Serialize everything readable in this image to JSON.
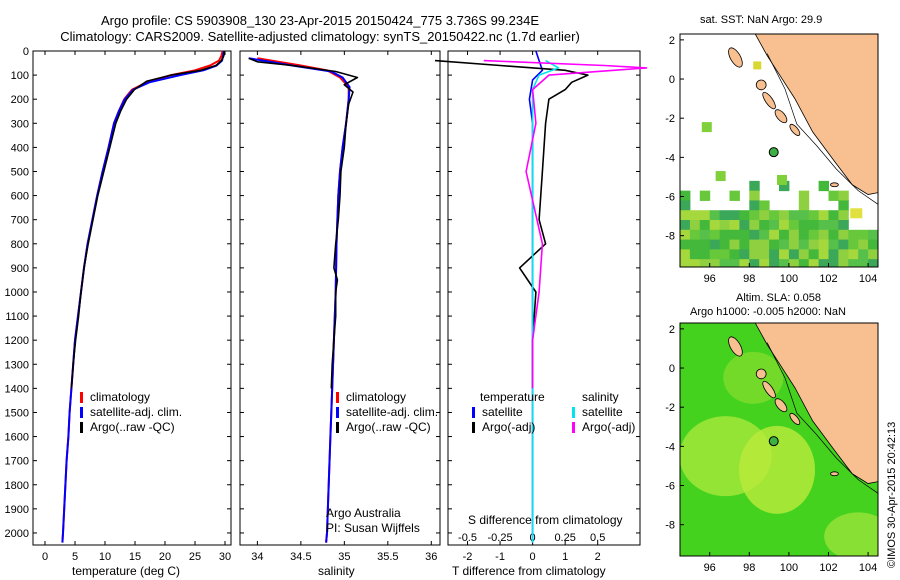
{
  "header": {
    "line1": "Argo profile: CS 5903908_130 23-Apr-2015 20150424_775 3.736S 99.234E",
    "line2": "Climatology: CARS2009. Satellite-adjusted climatology: synTS_20150422.nc (1.7d earlier)"
  },
  "colors": {
    "climatology": "#ff0000",
    "satellite": "#0000ff",
    "argo": "#000000",
    "salinity_sat": "#00e5ee",
    "salinity_argo": "#ff00ff",
    "land": "#f8c090"
  },
  "legend": {
    "climatology": "climatology",
    "satellite_adj": "satellite-adj. clim.",
    "argo_raw": "Argo(..raw -QC)",
    "diff_temp_head": "temperature",
    "diff_sal_head": "salinity",
    "diff_satellite": "satellite",
    "diff_argo": "Argo(-adj)"
  },
  "annotations": {
    "institution": "Argo Australia",
    "pi": "PI: Susan Wijffels"
  },
  "maps": {
    "sst_title": "sat. SST: NaN Argo: 29.9",
    "sla_title_1": "Altim. SLA: 0.058",
    "sla_title_2": "Argo h1000: -0.005 h2000: NaN",
    "x_ticks": [
      "96",
      "98",
      "100",
      "102",
      "104"
    ],
    "y_ticks": [
      "2",
      "0",
      "-2",
      "-4",
      "-6",
      "-8"
    ],
    "float_position": {
      "lon": 99.234,
      "lat": -3.736
    }
  },
  "credit": "©IMOS 30-Apr-2015 20:42:13",
  "chart_data": [
    {
      "type": "line",
      "xlabel": "temperature (deg C)",
      "ylabel": "",
      "xlim": [
        -2,
        31
      ],
      "ylim": [
        0,
        2050
      ],
      "x_ticks": [
        "0",
        "5",
        "10",
        "15",
        "20",
        "25",
        "30"
      ],
      "y_ticks": [
        "0",
        "100",
        "200",
        "300",
        "400",
        "500",
        "600",
        "700",
        "800",
        "900",
        "1000",
        "1100",
        "1200",
        "1300",
        "1400",
        "1500",
        "1600",
        "1700",
        "1800",
        "1900",
        "2000"
      ],
      "series": [
        {
          "name": "climatology",
          "points": [
            [
              29.6,
              0
            ],
            [
              29.4,
              20
            ],
            [
              29.0,
              40
            ],
            [
              27.5,
              60
            ],
            [
              25.0,
              80
            ],
            [
              21.0,
              100
            ],
            [
              17.0,
              130
            ],
            [
              14.5,
              160
            ],
            [
              13.2,
              200
            ],
            [
              12.3,
              250
            ],
            [
              11.5,
              300
            ],
            [
              10.6,
              400
            ],
            [
              9.6,
              500
            ],
            [
              8.7,
              600
            ],
            [
              7.9,
              700
            ],
            [
              7.1,
              800
            ],
            [
              6.5,
              900
            ],
            [
              6.0,
              1000
            ],
            [
              5.5,
              1100
            ],
            [
              5.0,
              1200
            ],
            [
              4.7,
              1300
            ],
            [
              4.4,
              1400
            ],
            [
              4.1,
              1500
            ],
            [
              3.9,
              1600
            ],
            [
              3.6,
              1700
            ],
            [
              3.4,
              1800
            ],
            [
              3.2,
              1900
            ],
            [
              3.0,
              2000
            ],
            [
              2.9,
              2040
            ]
          ]
        },
        {
          "name": "satellite-adj. clim.",
          "points": [
            [
              29.8,
              0
            ],
            [
              29.7,
              20
            ],
            [
              29.5,
              40
            ],
            [
              28.6,
              60
            ],
            [
              26.4,
              80
            ],
            [
              22.5,
              100
            ],
            [
              17.4,
              130
            ],
            [
              14.7,
              160
            ],
            [
              13.3,
              200
            ],
            [
              12.3,
              250
            ],
            [
              11.5,
              300
            ],
            [
              10.6,
              400
            ],
            [
              9.6,
              500
            ],
            [
              8.7,
              600
            ],
            [
              7.9,
              700
            ],
            [
              7.1,
              800
            ],
            [
              6.5,
              900
            ],
            [
              6.0,
              1000
            ],
            [
              5.5,
              1100
            ],
            [
              5.0,
              1200
            ],
            [
              4.7,
              1300
            ],
            [
              4.4,
              1400
            ],
            [
              4.1,
              1500
            ],
            [
              3.9,
              1600
            ],
            [
              3.6,
              1700
            ],
            [
              3.4,
              1800
            ],
            [
              3.2,
              1900
            ],
            [
              3.0,
              2000
            ],
            [
              2.9,
              2040
            ]
          ]
        },
        {
          "name": "Argo(..raw -QC)",
          "points": [
            [
              29.9,
              0
            ],
            [
              29.8,
              20
            ],
            [
              29.4,
              40
            ],
            [
              28.5,
              60
            ],
            [
              26.0,
              80
            ],
            [
              21.0,
              100
            ],
            [
              17.0,
              125
            ],
            [
              14.9,
              160
            ],
            [
              13.6,
              200
            ],
            [
              12.6,
              250
            ],
            [
              11.8,
              300
            ],
            [
              10.8,
              400
            ],
            [
              9.8,
              500
            ],
            [
              8.8,
              600
            ],
            [
              8.0,
              700
            ],
            [
              7.2,
              800
            ],
            [
              6.5,
              900
            ],
            [
              6.0,
              1000
            ],
            [
              5.6,
              1100
            ],
            [
              5.1,
              1200
            ],
            [
              4.7,
              1300
            ],
            [
              4.4,
              1400
            ]
          ]
        }
      ]
    },
    {
      "type": "line",
      "xlabel": "salinity",
      "ylabel": "",
      "xlim": [
        33.8,
        36.1
      ],
      "ylim": [
        0,
        2050
      ],
      "x_ticks": [
        "34",
        "34.5",
        "35",
        "35.5",
        "36"
      ],
      "series": [
        {
          "name": "climatology",
          "points": [
            [
              34.0,
              30
            ],
            [
              34.5,
              60
            ],
            [
              34.8,
              80
            ],
            [
              34.95,
              110
            ],
            [
              35.05,
              150
            ],
            [
              35.05,
              200
            ],
            [
              35.02,
              300
            ],
            [
              34.98,
              400
            ],
            [
              34.95,
              500
            ],
            [
              34.93,
              600
            ],
            [
              34.92,
              700
            ],
            [
              34.91,
              800
            ],
            [
              34.9,
              1000
            ],
            [
              34.88,
              1200
            ],
            [
              34.86,
              1400
            ],
            [
              34.84,
              1600
            ],
            [
              34.82,
              1800
            ],
            [
              34.8,
              2000
            ],
            [
              34.79,
              2040
            ]
          ]
        },
        {
          "name": "satellite-adj. clim.",
          "points": [
            [
              33.9,
              30
            ],
            [
              34.4,
              60
            ],
            [
              34.85,
              85
            ],
            [
              34.98,
              110
            ],
            [
              35.06,
              150
            ],
            [
              35.05,
              200
            ],
            [
              35.02,
              300
            ],
            [
              34.98,
              400
            ],
            [
              34.95,
              500
            ],
            [
              34.93,
              600
            ],
            [
              34.92,
              700
            ],
            [
              34.91,
              800
            ],
            [
              34.9,
              1000
            ],
            [
              34.88,
              1200
            ],
            [
              34.86,
              1400
            ],
            [
              34.84,
              1600
            ],
            [
              34.82,
              1800
            ],
            [
              34.8,
              2000
            ],
            [
              34.79,
              2040
            ]
          ]
        },
        {
          "name": "Argo(..raw -QC)",
          "points": [
            [
              33.9,
              30
            ],
            [
              34.0,
              45
            ],
            [
              34.4,
              60
            ],
            [
              34.9,
              85
            ],
            [
              35.15,
              110
            ],
            [
              35.0,
              140
            ],
            [
              35.1,
              170
            ],
            [
              35.05,
              220
            ],
            [
              35.02,
              300
            ],
            [
              35.0,
              400
            ],
            [
              34.96,
              500
            ],
            [
              34.95,
              600
            ],
            [
              34.93,
              700
            ],
            [
              34.9,
              800
            ],
            [
              34.88,
              900
            ],
            [
              34.92,
              950
            ],
            [
              34.9,
              1000
            ],
            [
              34.9,
              1100
            ],
            [
              34.88,
              1200
            ],
            [
              34.86,
              1300
            ],
            [
              34.85,
              1400
            ]
          ]
        }
      ]
    },
    {
      "type": "line",
      "xlabel": "T difference from climatology",
      "title": "S difference from climatology",
      "ylabel": "",
      "xlim": [
        -2.6,
        3.3
      ],
      "ylim": [
        0,
        2050
      ],
      "x_ticks": [
        "-2",
        "-1",
        "0",
        "1",
        "2"
      ],
      "top_ticks": [
        "-0.5",
        "-0.25",
        "0",
        "0.25",
        "0.5"
      ],
      "series": [
        {
          "name": "temperature satellite",
          "points": [
            [
              0.1,
              0
            ],
            [
              0.2,
              40
            ],
            [
              0.3,
              80
            ],
            [
              0.0,
              120
            ],
            [
              -0.1,
              200
            ],
            [
              0.0,
              300
            ],
            [
              0.0,
              600
            ],
            [
              0.0,
              2040
            ]
          ]
        },
        {
          "name": "temperature Argo(-adj)",
          "points": [
            [
              -3.0,
              40
            ],
            [
              -1.0,
              60
            ],
            [
              1.0,
              80
            ],
            [
              1.7,
              100
            ],
            [
              1.2,
              130
            ],
            [
              1.0,
              160
            ],
            [
              0.5,
              200
            ],
            [
              0.4,
              300
            ],
            [
              0.3,
              500
            ],
            [
              0.2,
              700
            ],
            [
              0.4,
              800
            ],
            [
              -0.4,
              900
            ],
            [
              0.1,
              1000
            ],
            [
              0.0,
              1200
            ],
            [
              0.0,
              1400
            ]
          ]
        },
        {
          "name": "salinity satellite",
          "points": [
            [
              0.4,
              40
            ],
            [
              0.8,
              70
            ],
            [
              0.2,
              100
            ],
            [
              0.0,
              160
            ],
            [
              0.0,
              300
            ],
            [
              0.0,
              2040
            ]
          ]
        },
        {
          "name": "salinity Argo(-adj)",
          "points": [
            [
              -1.5,
              40
            ],
            [
              2.2,
              60
            ],
            [
              3.5,
              70
            ],
            [
              0.5,
              100
            ],
            [
              0.0,
              160
            ],
            [
              0.1,
              300
            ],
            [
              -0.2,
              500
            ],
            [
              0.3,
              800
            ],
            [
              0.2,
              1000
            ],
            [
              0.0,
              1200
            ],
            [
              0.0,
              1400
            ]
          ]
        }
      ]
    }
  ]
}
